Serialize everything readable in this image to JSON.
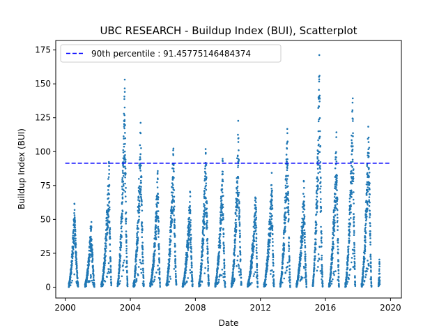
{
  "chart_data": {
    "type": "scatter",
    "title": "UBC RESEARCH - Buildup Index (BUI), Scatterplot",
    "xlabel": "Date",
    "ylabel": "Buildup Index (BUI)",
    "xlim": [
      "1999-06-01",
      "2020-09-01"
    ],
    "ylim": [
      -8,
      182
    ],
    "x_ticks": [
      "2000",
      "2004",
      "2008",
      "2012",
      "2016",
      "2020"
    ],
    "y_ticks": [
      0,
      25,
      50,
      75,
      100,
      125,
      150,
      175
    ],
    "legend": {
      "position": "top-left",
      "entries": [
        "90th percentile : 91.45775146484374"
      ]
    },
    "reference_line": {
      "name": "90th percentile : 91.45775146484374",
      "y": 91.45775146484374,
      "x_start": "2000-01-01",
      "x_end": "2020-01-01",
      "style": "dashed",
      "color": "#0000ff"
    },
    "point_color": "#1f77b4",
    "seasons": [
      {
        "year": 2000,
        "start": "2000-03-20",
        "end": "2000-10-15",
        "peak": 63,
        "peak_date": "2000-07-25"
      },
      {
        "year": 2001,
        "start": "2001-03-20",
        "end": "2001-10-15",
        "peak": 52,
        "peak_date": "2001-08-05"
      },
      {
        "year": 2002,
        "start": "2002-03-20",
        "end": "2002-10-31",
        "peak": 96,
        "peak_date": "2002-09-10"
      },
      {
        "year": 2003,
        "start": "2003-03-20",
        "end": "2003-10-31",
        "peak": 154,
        "peak_date": "2003-08-28"
      },
      {
        "year": 2004,
        "start": "2004-03-10",
        "end": "2004-10-31",
        "peak": 126,
        "peak_date": "2004-08-20"
      },
      {
        "year": 2005,
        "start": "2005-03-20",
        "end": "2005-10-31",
        "peak": 88,
        "peak_date": "2005-09-10"
      },
      {
        "year": 2006,
        "start": "2006-03-20",
        "end": "2006-10-31",
        "peak": 110,
        "peak_date": "2006-08-25"
      },
      {
        "year": 2007,
        "start": "2007-03-20",
        "end": "2007-10-31",
        "peak": 74,
        "peak_date": "2007-09-05"
      },
      {
        "year": 2008,
        "start": "2008-03-20",
        "end": "2008-10-31",
        "peak": 108,
        "peak_date": "2008-08-25"
      },
      {
        "year": 2009,
        "start": "2009-03-20",
        "end": "2009-10-31",
        "peak": 97,
        "peak_date": "2009-09-05"
      },
      {
        "year": 2010,
        "start": "2010-03-20",
        "end": "2010-10-31",
        "peak": 124,
        "peak_date": "2010-08-20"
      },
      {
        "year": 2011,
        "start": "2011-03-20",
        "end": "2011-10-31",
        "peak": 74,
        "peak_date": "2011-09-20"
      },
      {
        "year": 2012,
        "start": "2012-03-20",
        "end": "2012-10-31",
        "peak": 89,
        "peak_date": "2012-09-15"
      },
      {
        "year": 2013,
        "start": "2013-03-20",
        "end": "2013-10-31",
        "peak": 125,
        "peak_date": "2013-08-30"
      },
      {
        "year": 2014,
        "start": "2014-03-20",
        "end": "2014-10-31",
        "peak": 82,
        "peak_date": "2014-09-05"
      },
      {
        "year": 2015,
        "start": "2015-03-20",
        "end": "2015-10-31",
        "peak": 174,
        "peak_date": "2015-08-15"
      },
      {
        "year": 2016,
        "start": "2016-03-20",
        "end": "2016-10-31",
        "peak": 118,
        "peak_date": "2016-09-05"
      },
      {
        "year": 2017,
        "start": "2017-03-20",
        "end": "2017-10-31",
        "peak": 146,
        "peak_date": "2017-09-05"
      },
      {
        "year": 2018,
        "start": "2018-03-20",
        "end": "2018-10-31",
        "peak": 136,
        "peak_date": "2018-08-30"
      },
      {
        "year": 2019,
        "start": "2019-04-05",
        "end": "2019-05-05",
        "peak": 27,
        "peak_date": "2019-04-30"
      }
    ]
  }
}
